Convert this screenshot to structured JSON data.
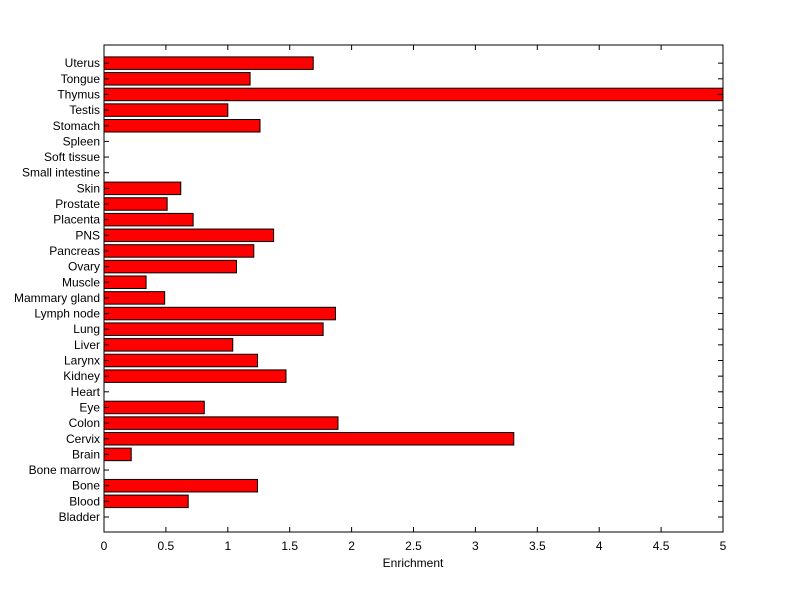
{
  "chart_data": {
    "type": "bar",
    "orientation": "horizontal",
    "xlabel": "Enrichment",
    "xlim": [
      0,
      5
    ],
    "xticks": [
      0,
      0.5,
      1,
      1.5,
      2,
      2.5,
      3,
      3.5,
      4,
      4.5,
      5
    ],
    "xtick_labels": [
      "0",
      "0.5",
      "1",
      "1.5",
      "2",
      "2.5",
      "3",
      "3.5",
      "4",
      "4.5",
      "5"
    ],
    "categories": [
      "Bladder",
      "Blood",
      "Bone",
      "Bone marrow",
      "Brain",
      "Cervix",
      "Colon",
      "Eye",
      "Heart",
      "Kidney",
      "Larynx",
      "Liver",
      "Lung",
      "Lymph node",
      "Mammary gland",
      "Muscle",
      "Ovary",
      "Pancreas",
      "PNS",
      "Placenta",
      "Prostate",
      "Skin",
      "Small intestine",
      "Soft tissue",
      "Spleen",
      "Stomach",
      "Testis",
      "Thymus",
      "Tongue",
      "Uterus"
    ],
    "values": [
      0,
      0.68,
      1.24,
      0,
      0.22,
      3.31,
      1.89,
      0.81,
      0,
      1.47,
      1.24,
      1.04,
      1.77,
      1.87,
      0.49,
      0.34,
      1.07,
      1.21,
      1.37,
      0.72,
      0.51,
      0.62,
      0,
      0,
      0,
      1.26,
      1.0,
      5.0,
      1.18,
      1.69
    ],
    "bar_color": "#ff0000",
    "edge_color": "#000000",
    "grid": false
  }
}
